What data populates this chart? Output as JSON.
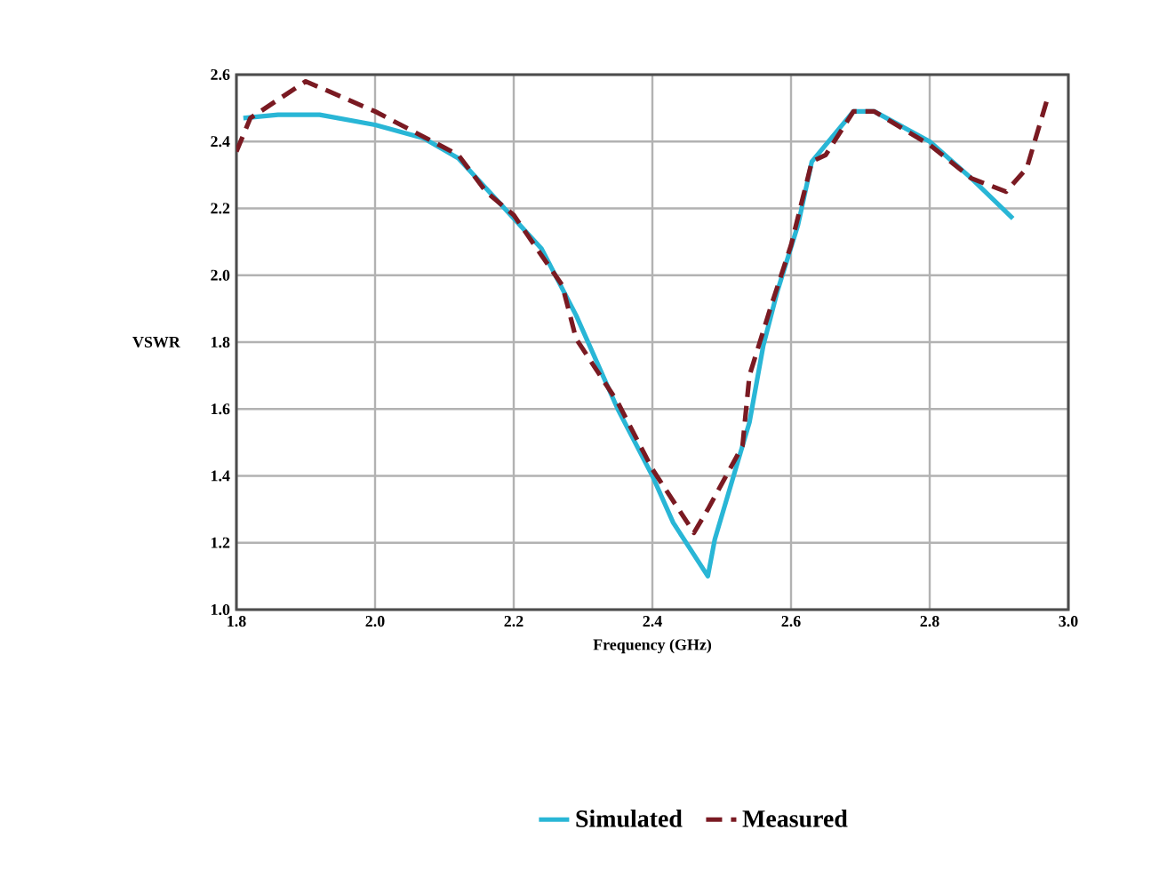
{
  "chart_data": {
    "type": "line",
    "xlabel": "Frequency (GHz)",
    "ylabel": "VSWR",
    "xlim": [
      1.8,
      3.0
    ],
    "ylim": [
      1.0,
      2.6
    ],
    "xticks": [
      {
        "value": 1.8,
        "label": "1.8"
      },
      {
        "value": 2.0,
        "label": "2.0"
      },
      {
        "value": 2.2,
        "label": "2.2"
      },
      {
        "value": 2.4,
        "label": "2.4"
      },
      {
        "value": 2.6,
        "label": "2.6"
      },
      {
        "value": 2.8,
        "label": "2.8"
      },
      {
        "value": 3.0,
        "label": "3.0"
      }
    ],
    "yticks": [
      {
        "value": 1.0,
        "label": "1.0"
      },
      {
        "value": 1.2,
        "label": "1.2"
      },
      {
        "value": 1.4,
        "label": "1.4"
      },
      {
        "value": 1.6,
        "label": "1.6"
      },
      {
        "value": 1.8,
        "label": "1.8"
      },
      {
        "value": 2.0,
        "label": "2.0"
      },
      {
        "value": 2.2,
        "label": "2.2"
      },
      {
        "value": 2.4,
        "label": "2.4"
      },
      {
        "value": 2.6,
        "label": "2.6"
      }
    ],
    "grid": true,
    "legend": "bottom",
    "series": [
      {
        "name": "Simulated",
        "color": "#29b6d6",
        "line_style": "solid",
        "x": [
          1.81,
          1.86,
          1.92,
          2.0,
          2.07,
          2.12,
          2.2,
          2.24,
          2.29,
          2.35,
          2.4,
          2.43,
          2.48,
          2.49,
          2.54,
          2.56,
          2.58,
          2.61,
          2.63,
          2.69,
          2.72,
          2.8,
          2.86,
          2.92
        ],
        "values": [
          2.47,
          2.48,
          2.48,
          2.45,
          2.41,
          2.35,
          2.17,
          2.08,
          1.88,
          1.6,
          1.4,
          1.26,
          1.1,
          1.21,
          1.56,
          1.79,
          1.95,
          2.15,
          2.34,
          2.49,
          2.49,
          2.4,
          2.29,
          2.17
        ]
      },
      {
        "name": "Measured",
        "color": "#7a1a22",
        "line_style": "dashed",
        "x": [
          1.8,
          1.82,
          1.9,
          2.0,
          2.12,
          2.16,
          2.2,
          2.24,
          2.27,
          2.29,
          2.35,
          2.4,
          2.46,
          2.48,
          2.53,
          2.54,
          2.57,
          2.6,
          2.63,
          2.65,
          2.69,
          2.72,
          2.8,
          2.86,
          2.91,
          2.94,
          2.97
        ],
        "values": [
          2.37,
          2.47,
          2.58,
          2.49,
          2.36,
          2.25,
          2.18,
          2.06,
          1.97,
          1.81,
          1.62,
          1.42,
          1.23,
          1.3,
          1.49,
          1.7,
          1.9,
          2.09,
          2.34,
          2.36,
          2.49,
          2.49,
          2.39,
          2.29,
          2.25,
          2.32,
          2.53
        ]
      }
    ]
  }
}
